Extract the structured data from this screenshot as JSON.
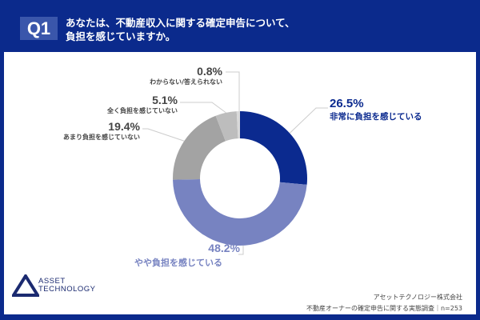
{
  "header": {
    "badge": "Q1",
    "question_line1": "あなたは、不動産収入に関する確定申告について、",
    "question_line2": "負担を感じていますか。"
  },
  "chart_data": {
    "type": "pie",
    "donut": true,
    "categories": [
      "非常に負担を感じている",
      "やや負担を感じている",
      "あまり負担を感じていない",
      "全く負担を感じていない",
      "わからない/答えられない"
    ],
    "values": [
      26.5,
      48.2,
      19.4,
      5.1,
      0.8
    ],
    "labels": [
      "26.5%",
      "48.2%",
      "19.4%",
      "5.1%",
      "0.8%"
    ],
    "colors": [
      "#0b2a8f",
      "#7783c1",
      "#a3a3a3",
      "#bdbdbd",
      "#d9d9d9"
    ],
    "label_colors": [
      "#0b2a8f",
      "#7783c1",
      "#444444",
      "#444444",
      "#444444"
    ]
  },
  "logo": {
    "line1": "ASSET",
    "line2": "TECHNOLOGY"
  },
  "footer": {
    "company": "アセットテクノロジー株式会社",
    "survey": "不動産オーナーの確定申告に関する実態調査｜n=253"
  }
}
